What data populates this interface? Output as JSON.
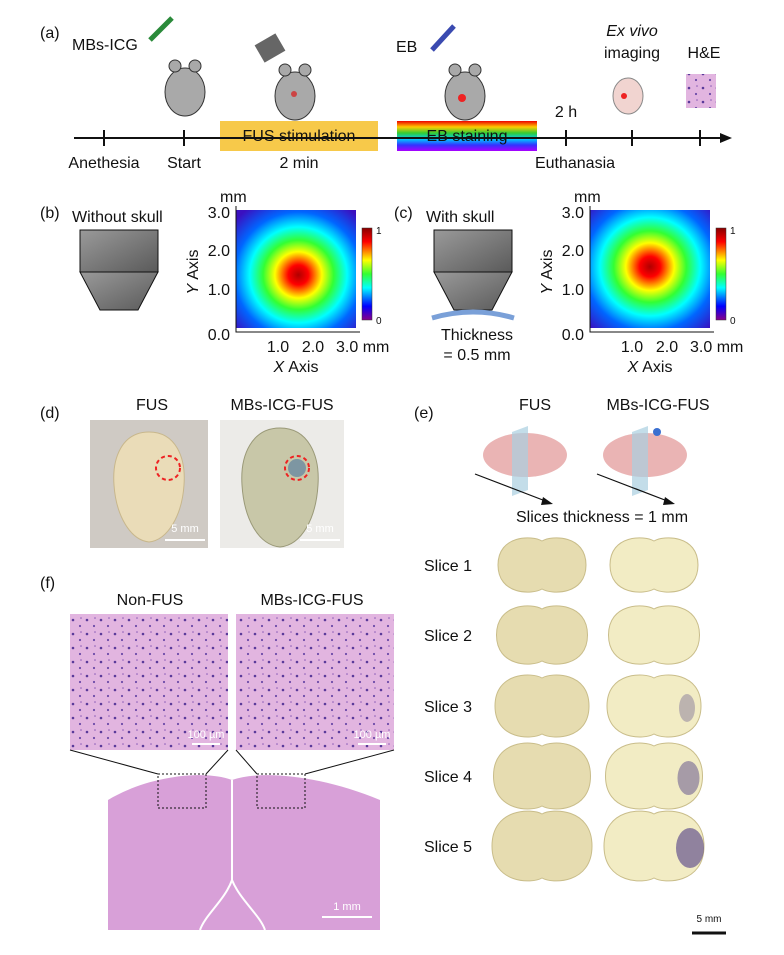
{
  "panel_a": {
    "label": "(a)",
    "agent1": "MBs-ICG",
    "agent2": "EB",
    "exvivo": "Ex vivo",
    "imaging": "imaging",
    "he": "H&E",
    "fus_box": "FUS stimulation",
    "eb_box": "EB staining",
    "two_h": "2 h",
    "timeline": [
      "Anethesia",
      "Start",
      "2 min",
      "Euthanasia"
    ]
  },
  "panel_b": {
    "label": "(b)",
    "title": "Without skull",
    "unit": "mm",
    "yticks": [
      "3.0",
      "2.0",
      "1.0",
      "0.0"
    ],
    "xticks": [
      "1.0",
      "2.0",
      "3.0 mm"
    ],
    "x_var": "X",
    "x_text": "Axis",
    "y_var": "Y",
    "y_text": "Axis",
    "cbar_top": "1",
    "cbar_bottom": "0"
  },
  "panel_c": {
    "label": "(c)",
    "title": "With skull",
    "thickness1": "Thickness",
    "thickness2": "= 0.5 mm",
    "unit": "mm",
    "yticks": [
      "3.0",
      "2.0",
      "1.0",
      "0.0"
    ],
    "xticks": [
      "1.0",
      "2.0",
      "3.0 mm"
    ],
    "x_var": "X",
    "x_text": "Axis",
    "y_var": "Y",
    "y_text": "Axis",
    "cbar_top": "1",
    "cbar_bottom": "0"
  },
  "panel_d": {
    "label": "(d)",
    "col1": "FUS",
    "col2": "MBs-ICG-FUS",
    "scale1": "5 mm",
    "scale2": "5 mm"
  },
  "panel_e": {
    "label": "(e)",
    "col1": "FUS",
    "col2": "MBs-ICG-FUS",
    "thickness": "Slices thickness = 1 mm",
    "slices": [
      "Slice 1",
      "Slice 2",
      "Slice 3",
      "Slice 4",
      "Slice 5"
    ],
    "scale": "5 mm"
  },
  "panel_f": {
    "label": "(f)",
    "col1": "Non-FUS",
    "col2": "MBs-ICG-FUS",
    "scale1": "100 µm",
    "scale2": "100 µm",
    "scale3": "1 mm"
  }
}
